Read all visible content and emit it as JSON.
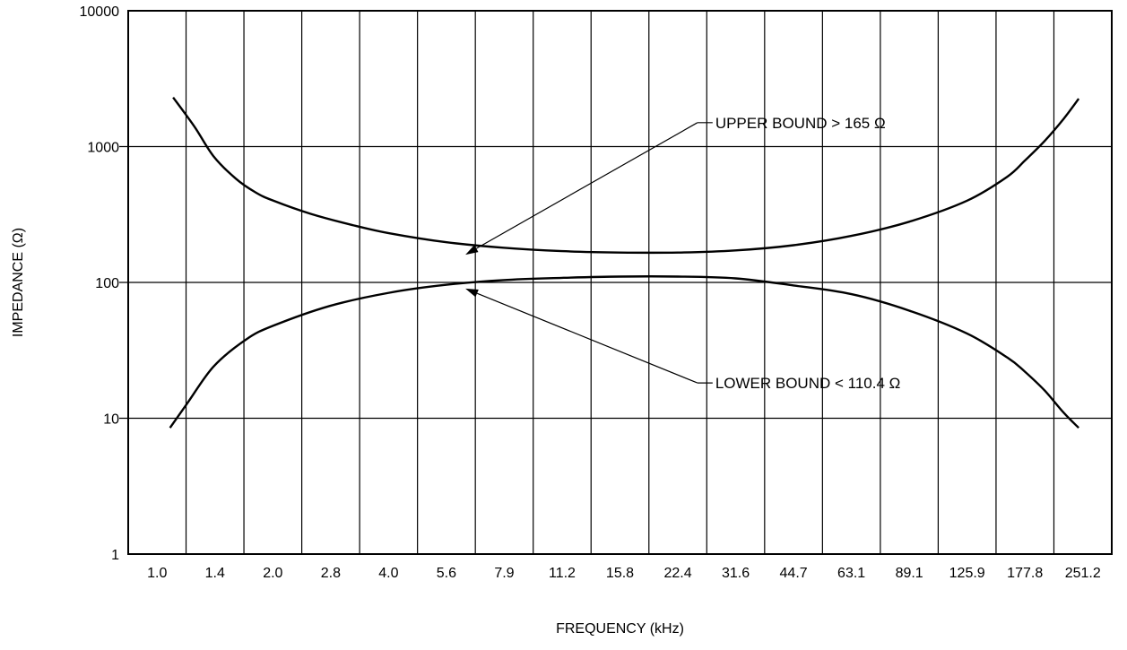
{
  "chart_data": {
    "type": "line",
    "title": "",
    "xlabel": "FREQUENCY (kHz)",
    "ylabel": "IMPEDANCE (Ω)",
    "x_scale": "log",
    "y_scale": "log",
    "xlim": [
      1.0,
      251.2
    ],
    "ylim": [
      1,
      10000
    ],
    "grid": true,
    "legend": "none",
    "x_ticks": [
      "1.0",
      "1.4",
      "2.0",
      "2.8",
      "4.0",
      "5.6",
      "7.9",
      "11.2",
      "15.8",
      "22.4",
      "31.6",
      "44.7",
      "63.1",
      "89.1",
      "125.9",
      "177.8",
      "251.2"
    ],
    "y_ticks": [
      "1",
      "10",
      "100",
      "1000",
      "10000"
    ],
    "series": [
      {
        "points": [
          [
            1.1,
            2300
          ],
          [
            1.25,
            1400
          ],
          [
            1.4,
            850
          ],
          [
            1.6,
            580
          ],
          [
            1.8,
            460
          ],
          [
            2.0,
            400
          ],
          [
            2.5,
            320
          ],
          [
            3.2,
            265
          ],
          [
            4.0,
            230
          ],
          [
            5.6,
            198
          ],
          [
            7.9,
            180
          ],
          [
            11.2,
            170
          ],
          [
            15.8,
            166
          ],
          [
            22.4,
            166
          ],
          [
            31.6,
            172
          ],
          [
            44.7,
            188
          ],
          [
            63.1,
            220
          ],
          [
            89.1,
            280
          ],
          [
            125.9,
            400
          ],
          [
            160,
            600
          ],
          [
            177.8,
            790
          ],
          [
            200,
            1100
          ],
          [
            224,
            1600
          ],
          [
            245,
            2250
          ]
        ]
      },
      {
        "points": [
          [
            1.08,
            8.5
          ],
          [
            1.2,
            13
          ],
          [
            1.4,
            24
          ],
          [
            1.7,
            38
          ],
          [
            2.0,
            48
          ],
          [
            2.8,
            67
          ],
          [
            4.0,
            84
          ],
          [
            5.6,
            96
          ],
          [
            7.9,
            104
          ],
          [
            11.2,
            108
          ],
          [
            15.8,
            110.4
          ],
          [
            22.4,
            110.4
          ],
          [
            31.6,
            107
          ],
          [
            44.7,
            95
          ],
          [
            63.1,
            82
          ],
          [
            89.1,
            62
          ],
          [
            125.9,
            42
          ],
          [
            160,
            28
          ],
          [
            177.8,
            22
          ],
          [
            200,
            16
          ],
          [
            224,
            11
          ],
          [
            245,
            8.5
          ]
        ]
      }
    ],
    "annotations": [
      {
        "text": "UPPER BOUND > 165 Ω",
        "x": 28,
        "y": 1500,
        "arrow_to": [
          6.3,
          160
        ]
      },
      {
        "text": "LOWER BOUND < 110.4 Ω",
        "x": 28,
        "y": 18.2,
        "arrow_to": [
          6.3,
          90
        ]
      }
    ]
  }
}
